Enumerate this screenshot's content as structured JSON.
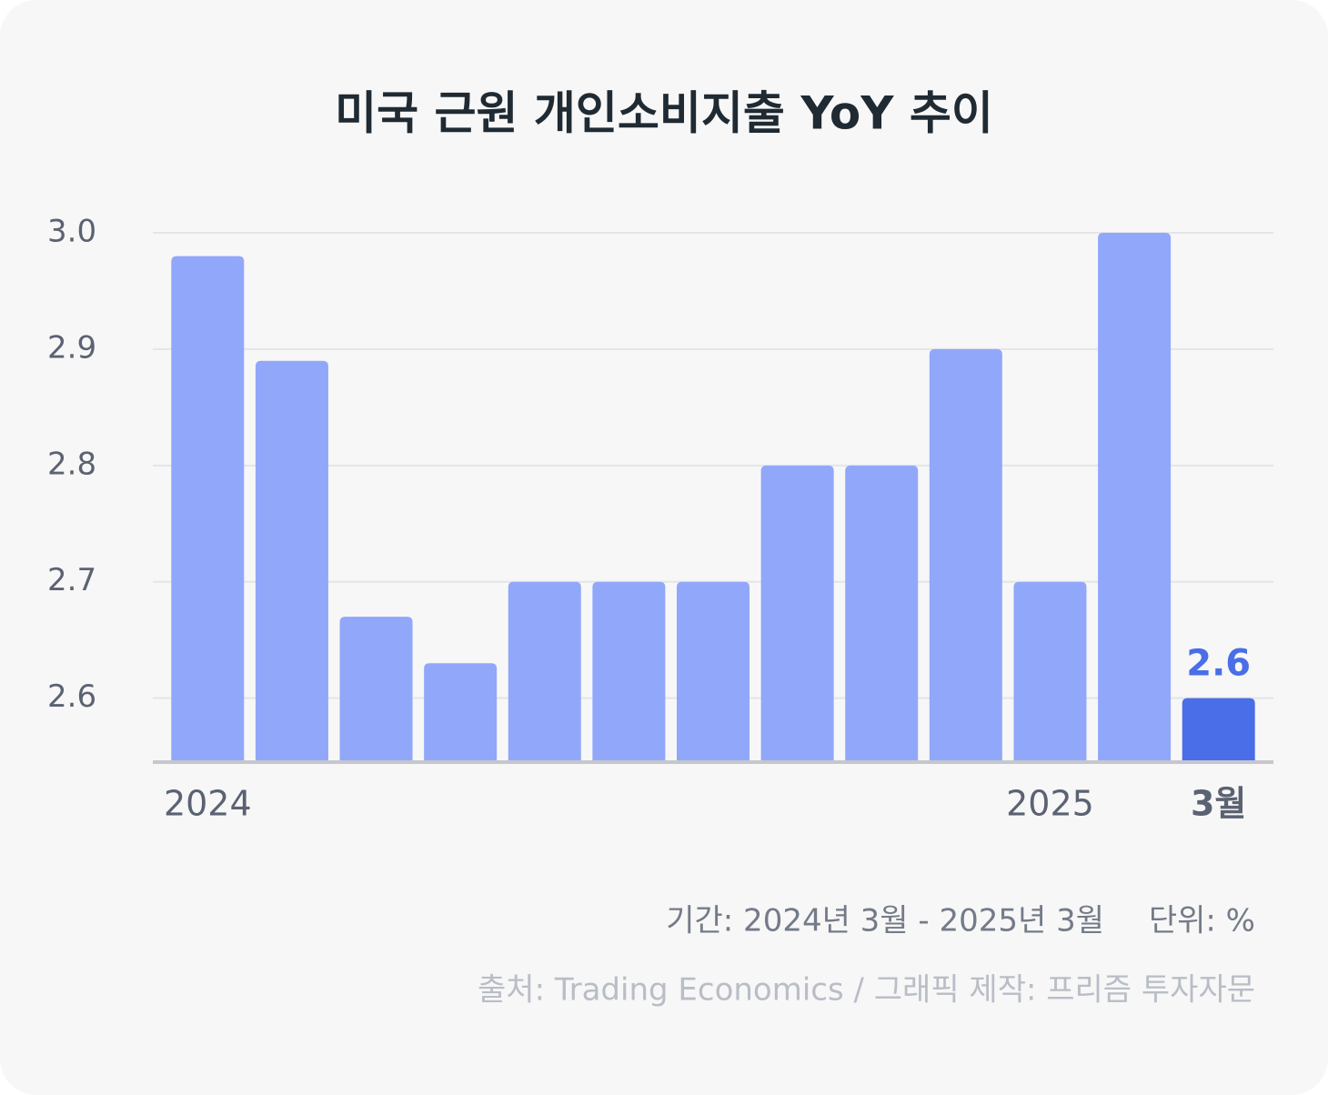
{
  "chart_data": {
    "type": "bar",
    "title": "미국 근원 개인소비지출 YoY 추이",
    "categories": [
      "2024",
      null,
      null,
      null,
      null,
      null,
      null,
      null,
      null,
      null,
      "2025",
      null,
      "3월"
    ],
    "series": [
      {
        "values": [
          2.98,
          2.89,
          2.67,
          2.63,
          2.7,
          2.7,
          2.7,
          2.8,
          2.8,
          2.9,
          2.7,
          3.0,
          2.6
        ],
        "colors": [
          "#91a7fa",
          "#91a7fa",
          "#91a7fa",
          "#91a7fa",
          "#91a7fa",
          "#91a7fa",
          "#91a7fa",
          "#91a7fa",
          "#91a7fa",
          "#91a7fa",
          "#91a7fa",
          "#91a7fa",
          "#4a6ee8"
        ]
      }
    ],
    "ylim": [
      2.545,
      3.0
    ],
    "yticks": [
      {
        "value": 2.6,
        "label": "2.6"
      },
      {
        "value": 2.7,
        "label": "2.7"
      },
      {
        "value": 2.8,
        "label": "2.8"
      },
      {
        "value": 2.9,
        "label": "2.9"
      },
      {
        "value": 3.0,
        "label": "3.0"
      }
    ],
    "grid": true,
    "period": "기간: 2024년 3월 - 2025년 3월",
    "unit": "단위: %",
    "source": "출처: Trading Economics / 그래픽 제작: 프리즘 투자자문"
  }
}
